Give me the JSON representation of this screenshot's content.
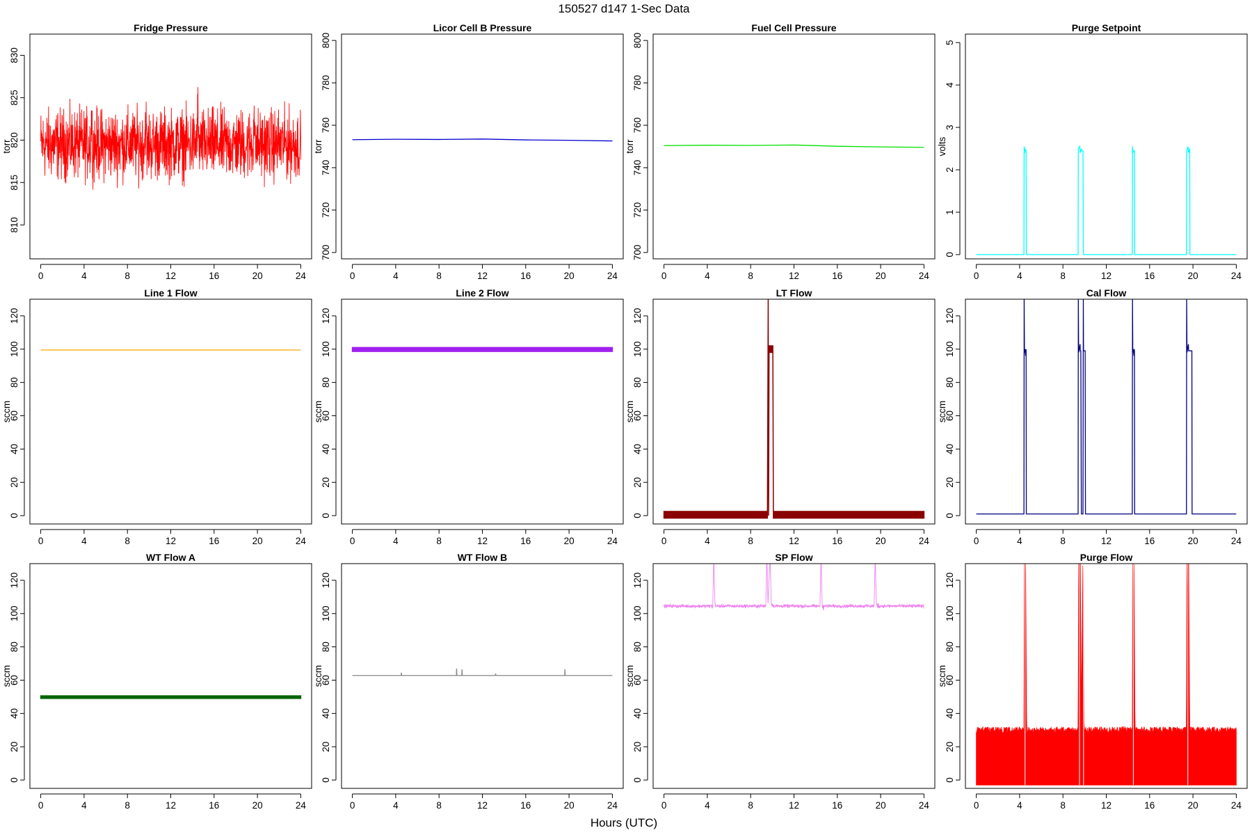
{
  "figure": {
    "title": "150527   d147   1-Sec Data",
    "xlabel": "Hours (UTC)"
  },
  "chart_data": [
    {
      "type": "line",
      "title": "Fridge Pressure",
      "ylabel": "torr",
      "color": "#ff0000",
      "style": "noise",
      "xlim": [
        -1,
        25
      ],
      "ylim": [
        806,
        832.5
      ],
      "yticks": [
        810,
        815,
        820,
        825,
        830
      ],
      "xticks": [
        0,
        4,
        8,
        12,
        16,
        20,
        24
      ],
      "series": [
        {
          "x": [
            0,
            4.6,
            4.7,
            4.8,
            4.9,
            9.6,
            9.7,
            9.8,
            9.9,
            14.4,
            14.5,
            14.6,
            14.7,
            19.6,
            19.7,
            19.8,
            19.9,
            24
          ],
          "y": [
            819.5,
            819.5,
            823,
            818.5,
            819.5,
            819.5,
            823.5,
            818,
            819.5,
            819.5,
            824,
            818.5,
            819.5,
            819.5,
            823.5,
            818.5,
            819.5,
            819.5
          ],
          "spread": [
            6,
            6,
            5,
            4.5,
            6,
            6,
            6,
            4,
            6,
            6,
            5,
            4.5,
            6,
            6,
            5,
            4.5,
            6,
            6
          ]
        }
      ]
    },
    {
      "type": "line",
      "title": "Licor Cell B Pressure",
      "ylabel": "torr",
      "color": "#0000cd",
      "style": "line",
      "xlim": [
        -1,
        25
      ],
      "ylim": [
        697,
        803
      ],
      "yticks": [
        700,
        720,
        740,
        760,
        780,
        800
      ],
      "xticks": [
        0,
        4,
        8,
        12,
        16,
        20,
        24
      ],
      "series": [
        {
          "x": [
            0,
            4,
            8,
            12,
            16,
            20,
            24
          ],
          "y": [
            753.2,
            753.4,
            753.3,
            753.5,
            753.1,
            752.9,
            752.6
          ]
        }
      ]
    },
    {
      "type": "line",
      "title": "Fuel Cell Pressure",
      "ylabel": "torr",
      "color": "#00e000",
      "style": "line",
      "xlim": [
        -1,
        25
      ],
      "ylim": [
        697,
        803
      ],
      "yticks": [
        700,
        720,
        740,
        760,
        780,
        800
      ],
      "xticks": [
        0,
        4,
        8,
        12,
        16,
        20,
        24
      ],
      "series": [
        {
          "x": [
            0,
            4,
            8,
            12,
            16,
            20,
            24
          ],
          "y": [
            750.4,
            750.6,
            750.5,
            750.7,
            750.1,
            749.8,
            749.6
          ]
        }
      ]
    },
    {
      "type": "line",
      "title": "Purge Setpoint",
      "ylabel": "volts",
      "color": "#00ffff",
      "style": "line",
      "xlim": [
        -1,
        25
      ],
      "ylim": [
        -0.1,
        5.2
      ],
      "yticks": [
        0,
        1,
        2,
        3,
        4,
        5
      ],
      "xticks": [
        0,
        4,
        8,
        12,
        16,
        20,
        24
      ],
      "series": [
        {
          "x": [
            0,
            4.4,
            4.42,
            4.48,
            4.5,
            4.56,
            4.6,
            4.62,
            9.4,
            9.42,
            9.55,
            9.58,
            9.7,
            9.72,
            9.85,
            9.88,
            14.4,
            14.42,
            14.48,
            14.5,
            14.6,
            14.62,
            19.4,
            19.42,
            19.55,
            19.58,
            19.7,
            19.72,
            24
          ],
          "y": [
            0,
            0,
            2.55,
            2.4,
            2.5,
            2.45,
            2.45,
            0,
            0,
            2.5,
            2.55,
            2.4,
            2.5,
            2.45,
            2.45,
            0,
            0,
            2.55,
            2.4,
            2.45,
            2.45,
            0,
            0,
            2.45,
            2.55,
            2.4,
            2.5,
            0,
            0
          ]
        }
      ]
    },
    {
      "type": "line",
      "title": "Line 1 Flow",
      "ylabel": "sccm",
      "color": "#ffa500",
      "style": "line",
      "xlim": [
        -1,
        25
      ],
      "ylim": [
        -5,
        130
      ],
      "yticks": [
        0,
        20,
        40,
        60,
        80,
        100,
        120
      ],
      "xticks": [
        0,
        4,
        8,
        12,
        16,
        20,
        24
      ],
      "series": [
        {
          "x": [
            0,
            24
          ],
          "y": [
            99.5,
            99.5
          ]
        }
      ]
    },
    {
      "type": "line",
      "title": "Line 2 Flow",
      "ylabel": "sccm",
      "color": "#a020f0",
      "style": "band",
      "xlim": [
        -1,
        25
      ],
      "ylim": [
        -5,
        130
      ],
      "yticks": [
        0,
        20,
        40,
        60,
        80,
        100,
        120
      ],
      "xticks": [
        0,
        4,
        8,
        12,
        16,
        20,
        24
      ],
      "series": [
        {
          "x": [
            0,
            24
          ],
          "y": [
            99.8,
            99.8
          ],
          "spread": [
            1.2,
            1.2
          ]
        }
      ]
    },
    {
      "type": "line",
      "title": "LT Flow",
      "ylabel": "sccm",
      "color": "#8b0000",
      "style": "band",
      "xlim": [
        -1,
        25
      ],
      "ylim": [
        -5,
        130
      ],
      "yticks": [
        0,
        20,
        40,
        60,
        80,
        100,
        120
      ],
      "xticks": [
        0,
        4,
        8,
        12,
        16,
        20,
        24
      ],
      "series": [
        {
          "x": [
            0,
            9.55,
            9.62,
            9.66,
            9.7,
            10.05,
            10.1,
            24
          ],
          "y": [
            0.5,
            0.5,
            130,
            0,
            100,
            100,
            0.5,
            0.5
          ],
          "spread": [
            2,
            2,
            0,
            0,
            2,
            2,
            2,
            2
          ]
        }
      ]
    },
    {
      "type": "line",
      "title": "Cal Flow",
      "ylabel": "sccm",
      "color": "#000080",
      "style": "line",
      "xlim": [
        -1,
        25
      ],
      "ylim": [
        -5,
        130
      ],
      "yticks": [
        0,
        20,
        40,
        60,
        80,
        100,
        120
      ],
      "xticks": [
        0,
        4,
        8,
        12,
        16,
        20,
        24
      ],
      "series": [
        {
          "x": [
            0,
            4.4,
            4.42,
            4.45,
            4.5,
            4.55,
            4.58,
            4.6,
            4.62,
            9.4,
            9.42,
            9.45,
            9.5,
            9.58,
            9.6,
            9.65,
            9.7,
            9.85,
            9.88,
            9.9,
            9.95,
            10.0,
            10.05,
            10.08,
            10.1,
            14.4,
            14.42,
            14.45,
            14.5,
            14.55,
            14.58,
            14.6,
            14.62,
            19.4,
            19.42,
            19.45,
            19.5,
            19.58,
            19.6,
            19.65,
            19.7,
            19.9,
            19.92,
            24
          ],
          "y": [
            1,
            1,
            130,
            98,
            100,
            96,
            100,
            99,
            1,
            1,
            130,
            98,
            100,
            103,
            99,
            99,
            1,
            1,
            130,
            99,
            99,
            99,
            99,
            1,
            1,
            1,
            130,
            98,
            100,
            96,
            100,
            99,
            1,
            1,
            130,
            98,
            100,
            103,
            99,
            99,
            99,
            99,
            1,
            1
          ]
        }
      ]
    },
    {
      "type": "line",
      "title": "WT Flow A",
      "ylabel": "sccm",
      "color": "#006400",
      "style": "band",
      "xlim": [
        -1,
        25
      ],
      "ylim": [
        -5,
        130
      ],
      "yticks": [
        0,
        20,
        40,
        60,
        80,
        100,
        120
      ],
      "xticks": [
        0,
        4,
        8,
        12,
        16,
        20,
        24
      ],
      "series": [
        {
          "x": [
            0,
            24
          ],
          "y": [
            49.8,
            49.8
          ],
          "spread": [
            0.8,
            0.8
          ]
        }
      ]
    },
    {
      "type": "line",
      "title": "WT Flow B",
      "ylabel": "sccm",
      "color": "#888888",
      "style": "line",
      "xlim": [
        -1,
        25
      ],
      "ylim": [
        -5,
        130
      ],
      "yticks": [
        0,
        20,
        40,
        60,
        80,
        100,
        120
      ],
      "xticks": [
        0,
        4,
        8,
        12,
        16,
        20,
        24
      ],
      "series": [
        {
          "x": [
            0,
            4.5,
            4.52,
            4.55,
            9.6,
            9.62,
            9.65,
            10.1,
            10.12,
            10.15,
            13.2,
            13.22,
            13.25,
            19.6,
            19.62,
            19.65,
            24
          ],
          "y": [
            62.8,
            62.8,
            64.5,
            62.8,
            62.8,
            67,
            62.8,
            62.8,
            66.5,
            62.8,
            62.8,
            64,
            62.8,
            62.8,
            66.5,
            62.8,
            62.8
          ]
        }
      ]
    },
    {
      "type": "line",
      "title": "SP Flow",
      "ylabel": "sccm",
      "color": "#ee82ee",
      "style": "noise",
      "xlim": [
        -1,
        25
      ],
      "ylim": [
        -5,
        130
      ],
      "yticks": [
        0,
        20,
        40,
        60,
        80,
        100,
        120
      ],
      "xticks": [
        0,
        4,
        8,
        12,
        16,
        20,
        24
      ],
      "series": [
        {
          "x": [
            0,
            4.4,
            4.5,
            4.6,
            4.7,
            4.8,
            9.4,
            9.5,
            9.6,
            9.8,
            9.9,
            10.1,
            10.2,
            14.4,
            14.5,
            14.6,
            14.7,
            14.8,
            19.4,
            19.5,
            19.6,
            19.8,
            19.9,
            24
          ],
          "y": [
            104.5,
            104.5,
            104,
            135,
            106,
            104.5,
            104.5,
            135,
            106,
            135,
            106,
            104.5,
            104.5,
            104.5,
            135,
            106,
            104,
            104.5,
            104.5,
            135,
            106,
            104.5,
            104.5,
            104.5
          ],
          "spread": [
            1.5,
            1.5,
            4,
            0,
            1.5,
            1.5,
            1.5,
            0,
            1.5,
            0,
            1.5,
            1.5,
            1.5,
            1.5,
            0,
            1.5,
            4,
            1.5,
            1.5,
            0,
            1.5,
            3,
            1.5,
            1.5
          ]
        }
      ]
    },
    {
      "type": "line",
      "title": "Purge Flow",
      "ylabel": "sccm",
      "color": "#ff0000",
      "style": "fill",
      "xlim": [
        -1,
        25
      ],
      "ylim": [
        -5,
        130
      ],
      "yticks": [
        0,
        20,
        40,
        60,
        80,
        100,
        120
      ],
      "xticks": [
        0,
        4,
        8,
        12,
        16,
        20,
        24
      ],
      "series": [
        {
          "x": [
            0,
            4.4,
            4.45,
            4.55,
            4.65,
            9.4,
            9.45,
            9.6,
            9.7,
            9.85,
            9.95,
            14.4,
            14.45,
            14.55,
            14.65,
            19.4,
            19.45,
            19.6,
            19.7,
            24
          ],
          "y": [
            -3,
            -3,
            135,
            135,
            -3,
            -3,
            135,
            135,
            40,
            135,
            -3,
            -3,
            135,
            135,
            -3,
            -3,
            135,
            135,
            -3,
            -3
          ],
          "ytop": [
            32,
            32,
            135,
            135,
            32,
            32,
            135,
            135,
            40,
            135,
            32,
            32,
            135,
            135,
            32,
            32,
            135,
            135,
            32,
            32
          ]
        }
      ]
    }
  ]
}
